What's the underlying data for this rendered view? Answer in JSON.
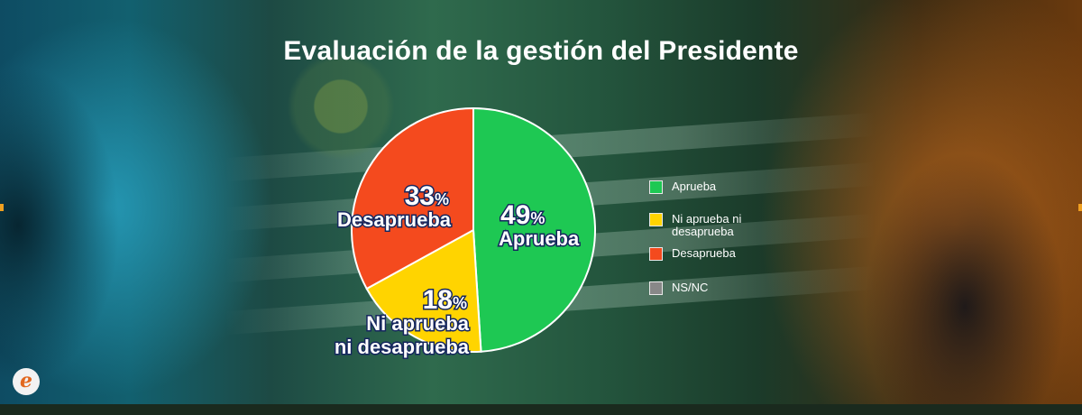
{
  "title": "Evaluación de la gestión del Presidente",
  "logo_text": "e",
  "colors": {
    "aprueba": "#1ec853",
    "ni": "#ffd400",
    "desaprueba": "#f44a1e",
    "nsnc": "#888888",
    "label_outline": "#15265e"
  },
  "chart_data": {
    "type": "pie",
    "title": "Evaluación de la gestión del Presidente",
    "slices": [
      {
        "name": "Aprueba",
        "value": 49,
        "display_value": "49",
        "unit": "%",
        "label": "Aprueba",
        "color": "#1ec853"
      },
      {
        "name": "Ni aprueba ni desaprueba",
        "value": 18,
        "display_value": "18",
        "unit": "%",
        "label_lines": [
          "Ni aprueba",
          "ni desaprueba"
        ],
        "color": "#ffd400"
      },
      {
        "name": "Desaprueba",
        "value": 33,
        "display_value": "33",
        "unit": "%",
        "label": "Desaprueba",
        "color": "#f44a1e"
      },
      {
        "name": "NS/NC",
        "value": 0,
        "color": "#888888"
      }
    ],
    "legend": {
      "placement": "right",
      "entries": [
        {
          "label": "Aprueba",
          "color": "#1ec853"
        },
        {
          "label": "Ni aprueba ni desaprueba",
          "color": "#ffd400"
        },
        {
          "label": "Desaprueba",
          "color": "#f44a1e"
        },
        {
          "label": "NS/NC",
          "color": "#888888"
        }
      ]
    }
  }
}
